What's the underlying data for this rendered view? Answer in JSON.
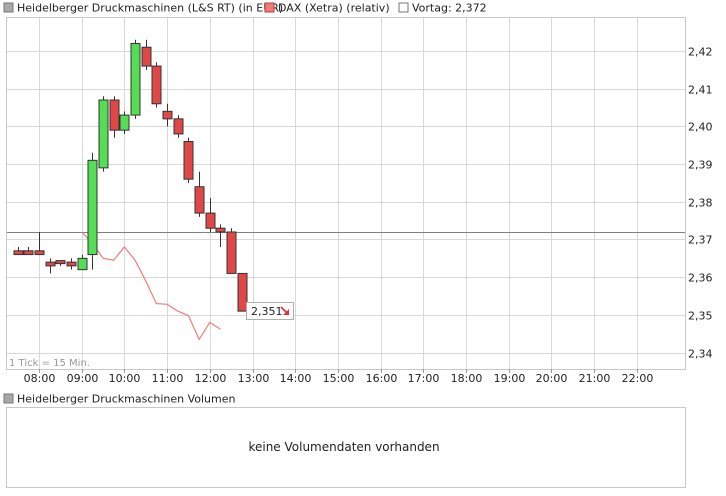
{
  "legend": {
    "main_series": "Heidelberger Druckmaschinen (L&S RT) (in EUR)",
    "dax_series": "DAX (Xetra) (relativ)",
    "prev_close": "Vortag: 2,372"
  },
  "tick_note": "1 Tick = 15 Min.",
  "last_price_label": "2,351",
  "volume_panel": {
    "legend": "Heidelberger Druckmaschinen Volumen",
    "message": "keine Volumendaten vorhanden"
  },
  "colors": {
    "up": "#55dd55",
    "down": "#e04848",
    "dax_line": "#f07a7a",
    "grid": "#d9d9d9",
    "prev_close_line": "#808080",
    "arrow": "#e03030"
  },
  "chart_data": {
    "type": "candlestick",
    "x_tick_labels": [
      "08:00",
      "09:00",
      "10:00",
      "11:00",
      "12:00",
      "13:00",
      "14:00",
      "15:00",
      "16:00",
      "17:00",
      "18:00",
      "19:00",
      "20:00",
      "21:00",
      "22:00"
    ],
    "y_tick_labels": [
      "2,42",
      "2,41",
      "2,40",
      "2,39",
      "2,38",
      "2,37",
      "2,36",
      "2,35",
      "2,34"
    ],
    "y_ticks": [
      2.42,
      2.41,
      2.4,
      2.39,
      2.38,
      2.37,
      2.36,
      2.35,
      2.34
    ],
    "ylim": [
      2.337,
      2.427
    ],
    "x_range": [
      "07:45",
      "23:15"
    ],
    "prev_close": 2.372,
    "interval_minutes": 15,
    "candles": [
      {
        "t": "07:30",
        "open": 2.367,
        "high": 2.368,
        "low": 2.366,
        "close": 2.366
      },
      {
        "t": "07:45",
        "open": 2.367,
        "high": 2.368,
        "low": 2.366,
        "close": 2.366
      },
      {
        "t": "08:00",
        "open": 2.367,
        "high": 2.372,
        "low": 2.366,
        "close": 2.366
      },
      {
        "t": "08:15",
        "open": 2.364,
        "high": 2.365,
        "low": 2.361,
        "close": 2.363
      },
      {
        "t": "08:30",
        "open": 2.364,
        "high": 2.364,
        "low": 2.363,
        "close": 2.364
      },
      {
        "t": "08:45",
        "open": 2.364,
        "high": 2.365,
        "low": 2.362,
        "close": 2.363
      },
      {
        "t": "09:00",
        "open": 2.362,
        "high": 2.366,
        "low": 2.362,
        "close": 2.365
      },
      {
        "t": "09:15",
        "open": 2.366,
        "high": 2.393,
        "low": 2.362,
        "close": 2.391
      },
      {
        "t": "09:30",
        "open": 2.389,
        "high": 2.408,
        "low": 2.388,
        "close": 2.407
      },
      {
        "t": "09:45",
        "open": 2.407,
        "high": 2.408,
        "low": 2.397,
        "close": 2.399
      },
      {
        "t": "10:00",
        "open": 2.399,
        "high": 2.404,
        "low": 2.398,
        "close": 2.403
      },
      {
        "t": "10:15",
        "open": 2.403,
        "high": 2.423,
        "low": 2.402,
        "close": 2.422
      },
      {
        "t": "10:30",
        "open": 2.421,
        "high": 2.423,
        "low": 2.415,
        "close": 2.416
      },
      {
        "t": "10:45",
        "open": 2.416,
        "high": 2.417,
        "low": 2.405,
        "close": 2.406
      },
      {
        "t": "11:00",
        "open": 2.404,
        "high": 2.406,
        "low": 2.4,
        "close": 2.402
      },
      {
        "t": "11:15",
        "open": 2.402,
        "high": 2.403,
        "low": 2.397,
        "close": 2.398
      },
      {
        "t": "11:30",
        "open": 2.396,
        "high": 2.397,
        "low": 2.385,
        "close": 2.386
      },
      {
        "t": "11:45",
        "open": 2.384,
        "high": 2.388,
        "low": 2.376,
        "close": 2.377
      },
      {
        "t": "12:00",
        "open": 2.377,
        "high": 2.381,
        "low": 2.372,
        "close": 2.373
      },
      {
        "t": "12:15",
        "open": 2.373,
        "high": 2.374,
        "low": 2.368,
        "close": 2.372
      },
      {
        "t": "12:30",
        "open": 2.372,
        "high": 2.373,
        "low": 2.361,
        "close": 2.361
      },
      {
        "t": "12:45",
        "open": 2.361,
        "high": 2.361,
        "low": 2.351,
        "close": 2.351
      }
    ],
    "dax_relative": [
      {
        "t": "09:00",
        "v": 2.372
      },
      {
        "t": "09:15",
        "v": 2.369
      },
      {
        "t": "09:30",
        "v": 2.365
      },
      {
        "t": "09:45",
        "v": 2.3645
      },
      {
        "t": "10:00",
        "v": 2.368
      },
      {
        "t": "10:15",
        "v": 2.3645
      },
      {
        "t": "10:30",
        "v": 2.359
      },
      {
        "t": "10:45",
        "v": 2.353
      },
      {
        "t": "11:00",
        "v": 2.3528
      },
      {
        "t": "11:15",
        "v": 2.351
      },
      {
        "t": "11:30",
        "v": 2.3498
      },
      {
        "t": "11:45",
        "v": 2.3435
      },
      {
        "t": "12:00",
        "v": 2.348
      },
      {
        "t": "12:15",
        "v": 2.3462
      }
    ]
  }
}
